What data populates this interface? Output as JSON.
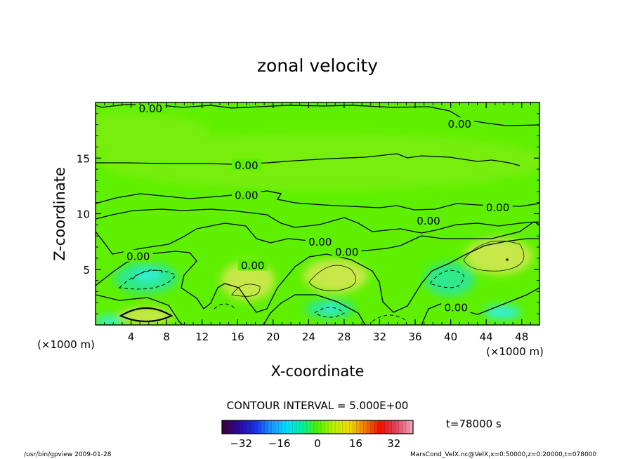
{
  "chart_data": {
    "type": "heatmap",
    "title": "zonal velocity",
    "xlabel": "X-coordinate",
    "ylabel": "Z-coordinate",
    "x_unit_left": "(×1000 m)",
    "x_unit_right": "(×1000 m)",
    "xlim": [
      0,
      50
    ],
    "ylim": [
      0,
      20
    ],
    "x_ticks": [
      4,
      8,
      12,
      16,
      20,
      24,
      28,
      32,
      36,
      40,
      44,
      48
    ],
    "y_ticks": [
      5,
      10,
      15
    ],
    "contour_interval_label": "CONTOUR INTERVAL = 5.000E+00",
    "time_label": "t=78000 s",
    "contour_labels": [
      {
        "x": 6.2,
        "z": 19.5,
        "text": "0.00"
      },
      {
        "x": 41.0,
        "z": 18.1,
        "text": "0.00"
      },
      {
        "x": 17.0,
        "z": 14.4,
        "text": "0.00"
      },
      {
        "x": 17.0,
        "z": 11.7,
        "text": "0.00"
      },
      {
        "x": 45.3,
        "z": 10.6,
        "text": "0.00"
      },
      {
        "x": 37.5,
        "z": 9.4,
        "text": "0.00"
      },
      {
        "x": 25.3,
        "z": 7.5,
        "text": "0.00"
      },
      {
        "x": 28.3,
        "z": 6.6,
        "text": "0.00"
      },
      {
        "x": 4.8,
        "z": 6.2,
        "text": "0.00"
      },
      {
        "x": 17.7,
        "z": 5.4,
        "text": "0.00"
      },
      {
        "x": 40.6,
        "z": 1.6,
        "text": "0.00"
      }
    ],
    "colorbar": {
      "range": [
        -40,
        40
      ],
      "ticks": [
        -32,
        -16,
        0,
        16,
        32
      ],
      "colors": [
        "#3a0040",
        "#2a0aa0",
        "#1730e8",
        "#1a90ff",
        "#00e0ff",
        "#00f0a0",
        "#50f000",
        "#b8f000",
        "#f0e000",
        "#f08000",
        "#f01000",
        "#e04060",
        "#f0a0b0"
      ]
    },
    "field_colors": {
      "background": "#5ef000",
      "light_green": "#78ee10",
      "yellow_green": "#a8e028",
      "yellow_patch": "#c8e848",
      "cyan_green": "#2ee88a",
      "cyan": "#30f0d8"
    },
    "footer_left": "/usr/bin/gpview   2009-01-28",
    "footer_right": "MarsCond_VelX.nc@VelX,x=0:50000,z=0:20000,t=078000"
  }
}
